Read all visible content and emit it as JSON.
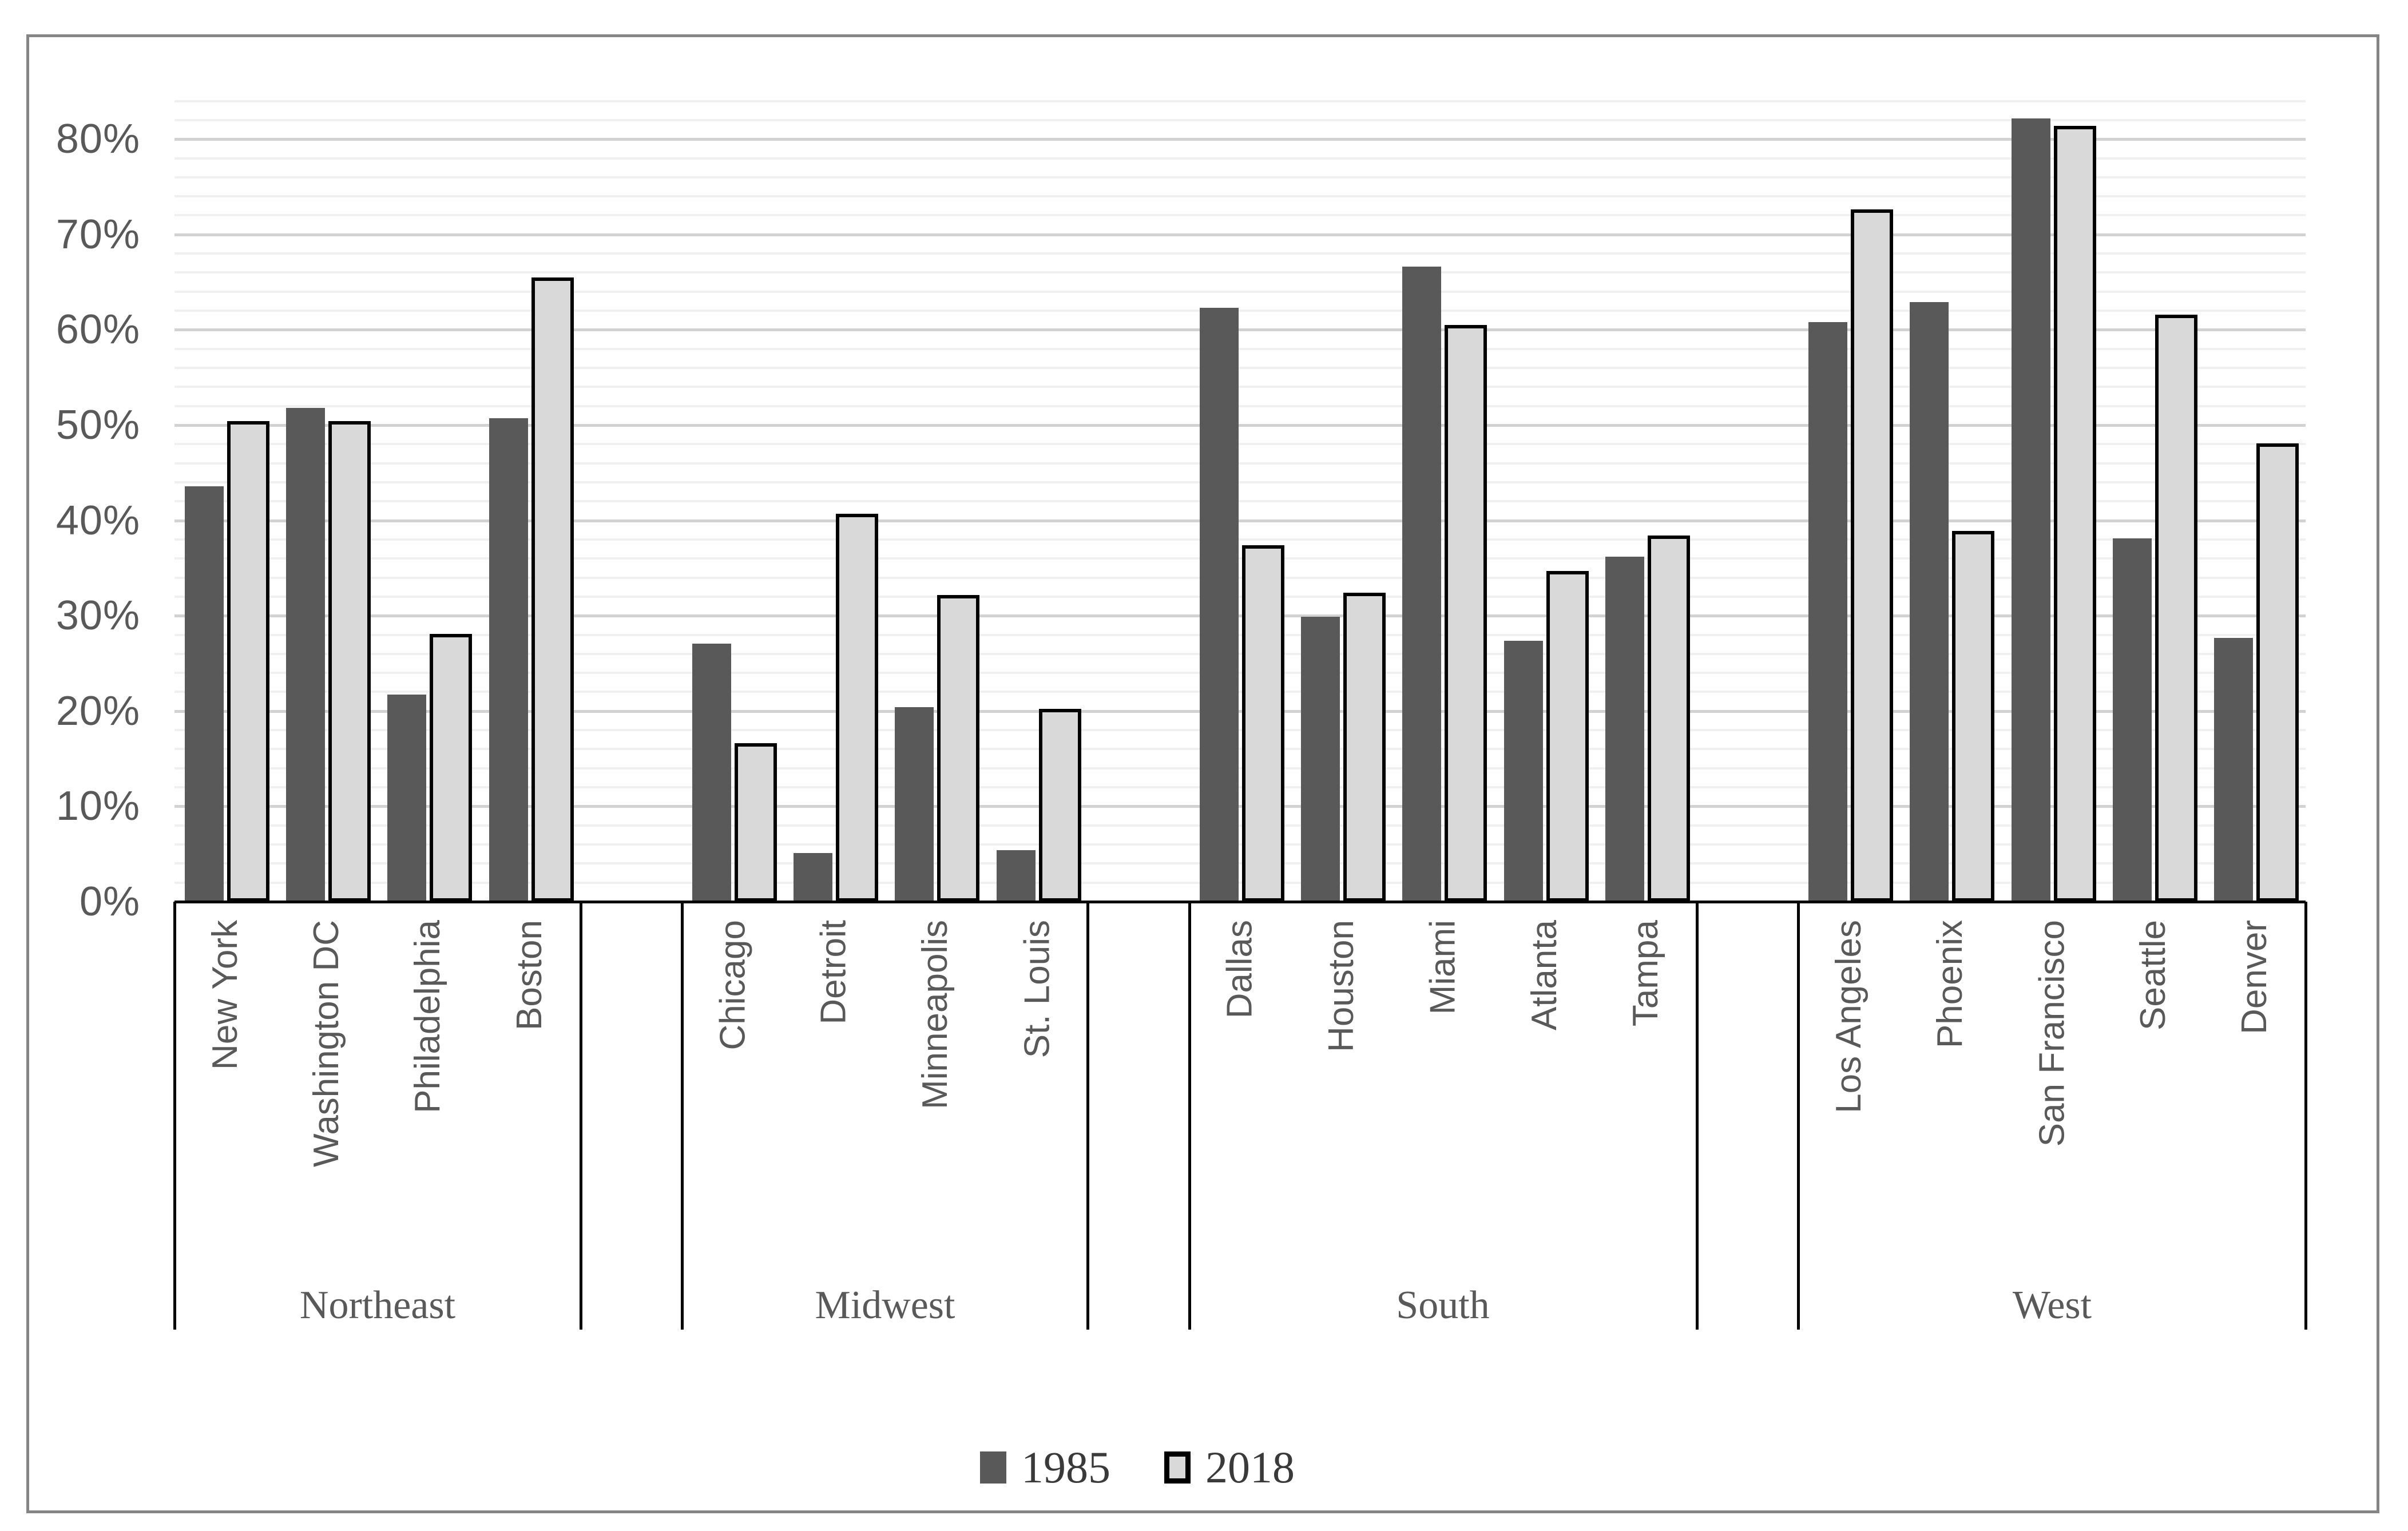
{
  "chart_data": {
    "type": "bar",
    "title": "",
    "xlabel": "",
    "ylabel": "",
    "y_axis": {
      "tick_labels": [
        "0%",
        "10%",
        "20%",
        "30%",
        "40%",
        "50%",
        "60%",
        "70%",
        "80%"
      ],
      "min_pct": 0,
      "max_pct": 84,
      "major_unit_pct": 10,
      "minor_unit_pct": 2,
      "grid": "major and minor horizontal gridlines"
    },
    "legend_position": "bottom-center",
    "series": [
      {
        "name": "1985",
        "fill": "#595959",
        "border": "none"
      },
      {
        "name": "2018",
        "fill": "#d9d9d9",
        "border": "#000000"
      }
    ],
    "groups": [
      {
        "region": "Northeast",
        "cities": [
          {
            "name": "New York",
            "values": [
              43.6,
              50.4
            ]
          },
          {
            "name": "Washington DC",
            "values": [
              51.8,
              50.4
            ]
          },
          {
            "name": "Philadelphia",
            "values": [
              21.7,
              28.1
            ]
          },
          {
            "name": "Boston",
            "values": [
              50.7,
              65.5
            ]
          }
        ]
      },
      {
        "region": "Midwest",
        "cities": [
          {
            "name": "Chicago",
            "values": [
              27.1,
              16.6
            ]
          },
          {
            "name": "Detroit",
            "values": [
              5.1,
              40.7
            ]
          },
          {
            "name": "Minneapolis",
            "values": [
              20.4,
              32.2
            ]
          },
          {
            "name": "St. Louis",
            "values": [
              5.4,
              20.2
            ]
          }
        ]
      },
      {
        "region": "South",
        "cities": [
          {
            "name": "Dallas",
            "values": [
              62.3,
              37.4
            ]
          },
          {
            "name": "Houston",
            "values": [
              29.9,
              32.4
            ]
          },
          {
            "name": "Miami",
            "values": [
              66.6,
              60.5
            ]
          },
          {
            "name": "Atlanta",
            "values": [
              27.4,
              34.7
            ]
          },
          {
            "name": "Tampa",
            "values": [
              36.2,
              38.4
            ]
          }
        ]
      },
      {
        "region": "West",
        "cities": [
          {
            "name": "Los Angeles",
            "values": [
              60.8,
              72.6
            ]
          },
          {
            "name": "Phoenix",
            "values": [
              62.9,
              38.9
            ]
          },
          {
            "name": "San Francisco",
            "values": [
              82.2,
              81.4
            ]
          },
          {
            "name": "Seattle",
            "values": [
              38.1,
              61.6
            ]
          },
          {
            "name": "Denver",
            "values": [
              27.7,
              48.1
            ]
          }
        ]
      }
    ]
  },
  "colors": {
    "background": "#ffffff",
    "chart_border": "#858585",
    "axis_line": "#000000",
    "major_gridline": "#d2d2d2",
    "minor_gridline": "#f0f0f0",
    "axis_text": "#595959",
    "legend_text": "#3a3a3a"
  }
}
